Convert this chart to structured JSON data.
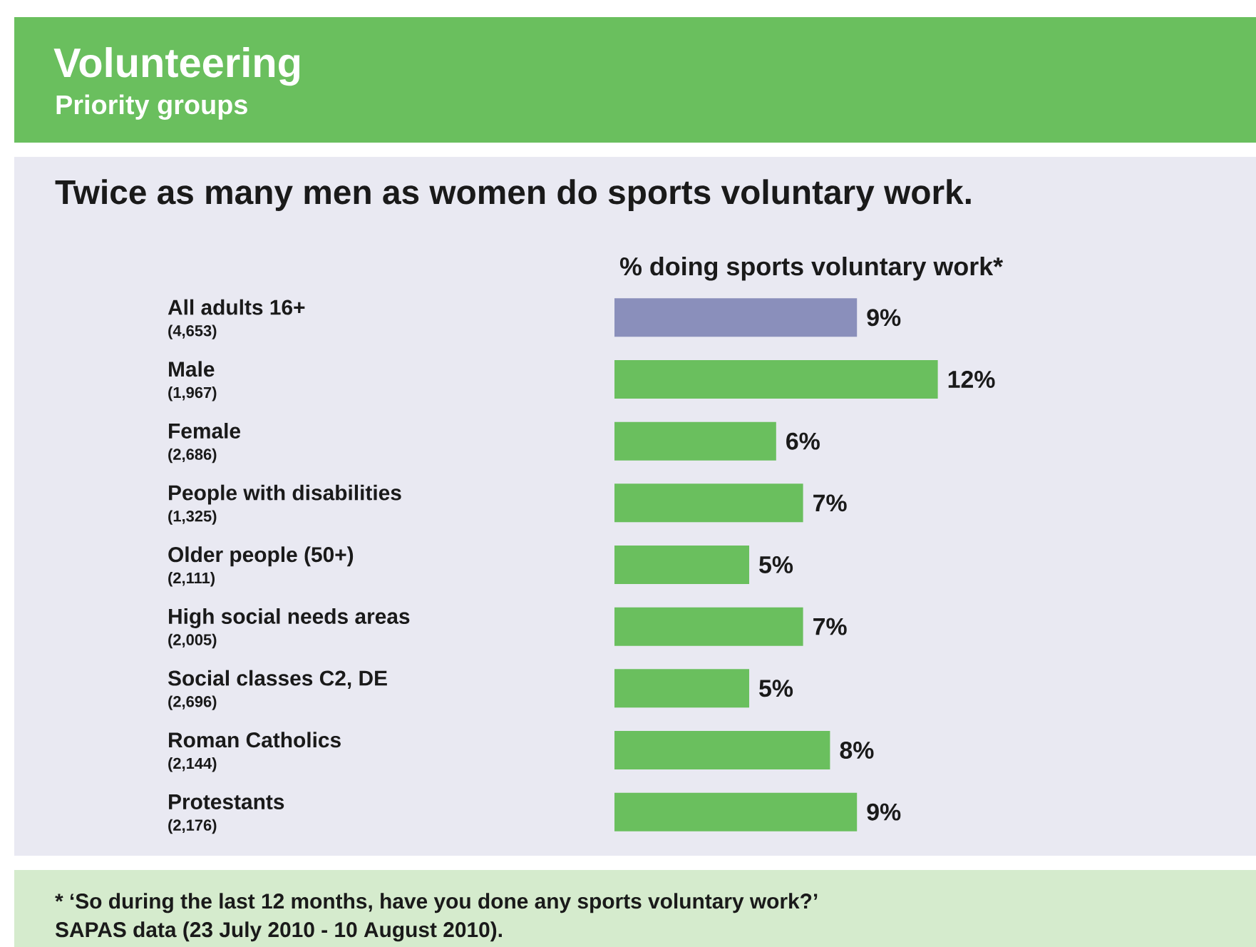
{
  "chart_data": {
    "type": "bar",
    "orientation": "horizontal",
    "title": "Volunteering",
    "subtitle": "Priority groups",
    "categories": [
      "All adults 16+",
      "Male",
      "Female",
      "People with disabilities",
      "Older people (50+)",
      "High social needs areas",
      "Social classes C2, DE",
      "Roman Catholics",
      "Protestants"
    ],
    "values": [
      9,
      12,
      6,
      7,
      5,
      7,
      5,
      8,
      9
    ],
    "value_labels": [
      "9%",
      "12%",
      "6%",
      "7%",
      "5%",
      "7%",
      "5%",
      "8%",
      "9%"
    ],
    "colors": [
      "#8a8fbb",
      "#6abf5e",
      "#6abf5e",
      "#6abf5e",
      "#6abf5e",
      "#6abf5e",
      "#6abf5e",
      "#6abf5e",
      "#6abf5e"
    ],
    "annotations": [
      "Twice as many men as women do sports voluntary work.",
      "(4,653)",
      "(1,967)",
      "(2,686)",
      "(1,325)",
      "(2,111)",
      "(2,005)",
      "(2,696)",
      "(2,144)",
      "(2,176)",
      "* ‘So during the last 12 months, have you done any sports voluntary work?’",
      "SAPAS data (23 July 2010 - 10 August 2010).",
      "% doing sports voluntary work*"
    ]
  }
}
